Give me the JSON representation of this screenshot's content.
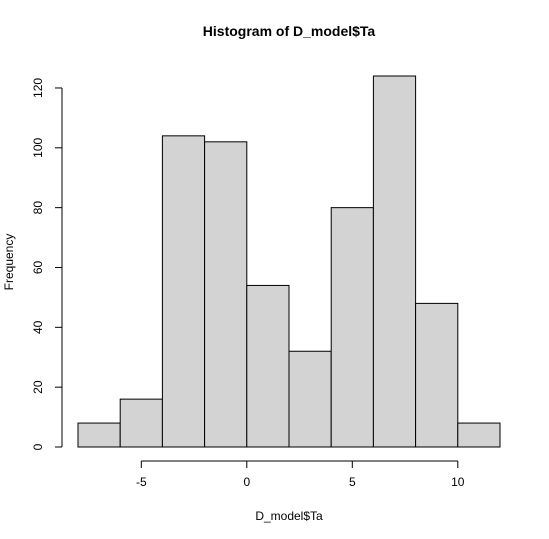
{
  "chart_data": {
    "type": "bar",
    "subtype": "histogram",
    "title": "Histogram of D_model$Ta",
    "xlabel": "D_model$Ta",
    "ylabel": "Frequency",
    "bins": [
      {
        "x0": -8,
        "x1": -6,
        "count": 8
      },
      {
        "x0": -6,
        "x1": -4,
        "count": 16
      },
      {
        "x0": -4,
        "x1": -2,
        "count": 104
      },
      {
        "x0": -2,
        "x1": 0,
        "count": 102
      },
      {
        "x0": 0,
        "x1": 2,
        "count": 54
      },
      {
        "x0": 2,
        "x1": 4,
        "count": 32
      },
      {
        "x0": 4,
        "x1": 6,
        "count": 80
      },
      {
        "x0": 6,
        "x1": 8,
        "count": 124
      },
      {
        "x0": 8,
        "x1": 10,
        "count": 48
      },
      {
        "x0": 10,
        "x1": 12,
        "count": 8
      }
    ],
    "xticks": [
      -5,
      0,
      5,
      10
    ],
    "xtick_labels": [
      "-5",
      "0",
      "5",
      "10"
    ],
    "yticks": [
      0,
      20,
      40,
      60,
      80,
      100,
      120
    ],
    "ytick_labels": [
      "0",
      "20",
      "40",
      "60",
      "80",
      "100",
      "120"
    ],
    "xlim": [
      -8,
      12
    ],
    "ylim": [
      0,
      124
    ],
    "bar_color": "#d3d3d3",
    "edge_color": "#000000",
    "grid": false,
    "legend": false
  }
}
